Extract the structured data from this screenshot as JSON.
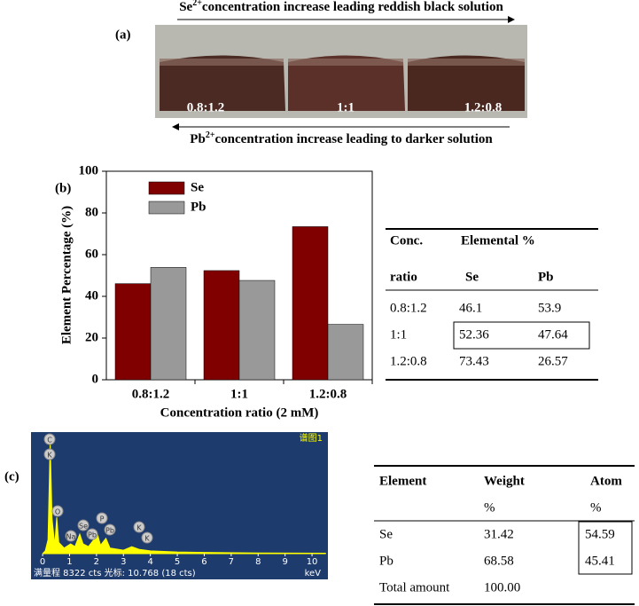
{
  "panel_a": {
    "label": "(a)",
    "top_text": [
      "Se",
      "2+",
      "concentration increase leading reddish black solution"
    ],
    "bottom_text": [
      "Pb",
      "2+",
      "concentration increase leading to darker solution"
    ],
    "flask_labels": [
      "0.8:1.2",
      "1:1",
      "1.2:0.8"
    ]
  },
  "panel_b": {
    "label": "(b)"
  },
  "panel_c": {
    "label": "(c)",
    "spectrum_title": "谱图1",
    "footer": "满量程 8322 cts 光标: 10.768 (18 cts)",
    "peak_labels": [
      "C",
      "K",
      "O",
      "Na",
      "Se",
      "Pb",
      "P",
      "Pb",
      "K",
      "K"
    ]
  },
  "chart_data": [
    {
      "type": "bar",
      "xlabel": "Concentration ratio (2 mM)",
      "ylabel": "Element Percentage (%)",
      "categories": [
        "0.8:1.2",
        "1:1",
        "1.2:0.8"
      ],
      "series": [
        {
          "name": "Se",
          "color": "#800000",
          "values": [
            46.1,
            52.36,
            73.43
          ]
        },
        {
          "name": "Pb",
          "color": "#999999",
          "values": [
            53.9,
            47.64,
            26.57
          ]
        }
      ],
      "ylim": [
        0,
        100
      ],
      "yticks": [
        0,
        20,
        40,
        60,
        80,
        100
      ],
      "legend": "upper left"
    },
    {
      "type": "area",
      "xlabel": "keV",
      "color": "#ffff00",
      "x": [
        0,
        0.1,
        0.2,
        0.28,
        0.35,
        0.45,
        0.525,
        0.6,
        0.8,
        1.04,
        1.2,
        1.38,
        1.5,
        1.7,
        1.9,
        2.02,
        2.15,
        2.35,
        2.5,
        3.0,
        3.31,
        3.6,
        4,
        5,
        6,
        8,
        10.5
      ],
      "y": [
        0,
        200,
        1000,
        8000,
        2500,
        600,
        2600,
        800,
        400,
        700,
        500,
        1400,
        700,
        500,
        1000,
        1500,
        600,
        1100,
        400,
        250,
        500,
        300,
        200,
        120,
        90,
        50,
        30
      ],
      "xlim": [
        -0.43,
        10.59
      ],
      "ylim": [
        0,
        8322
      ],
      "xticks": [
        0,
        1,
        2,
        3,
        4,
        5,
        6,
        7,
        8,
        9,
        10
      ]
    }
  ],
  "table_b": {
    "header": [
      "Conc.",
      "Elemental %"
    ],
    "subheader": [
      "ratio",
      "Se",
      "Pb"
    ],
    "rows": [
      [
        "0.8:1.2",
        "46.1",
        "53.9"
      ],
      [
        "1:1",
        "52.36",
        "47.64"
      ],
      [
        "1.2:0.8",
        "73.43",
        "26.57"
      ]
    ]
  },
  "table_c": {
    "header": [
      "Element",
      "Weight",
      "Atom"
    ],
    "units": [
      "%",
      "%"
    ],
    "rows": [
      [
        "Se",
        "31.42",
        "54.59"
      ],
      [
        "Pb",
        "68.58",
        "45.41"
      ],
      [
        "Total amount",
        "100.00"
      ]
    ]
  }
}
